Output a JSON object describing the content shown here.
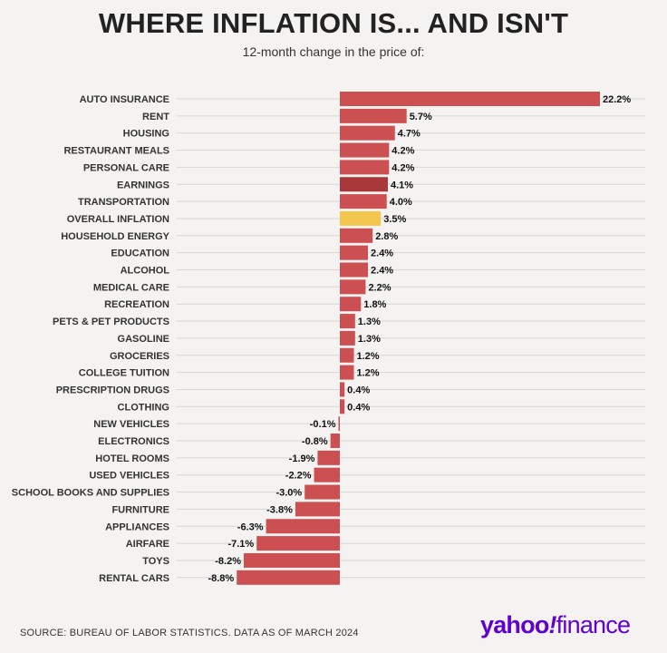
{
  "title": "WHERE INFLATION IS... AND ISN'T",
  "subtitle": "12-month change in the price of:",
  "source": "SOURCE: BUREAU OF LABOR STATISTICS. DATA AS OF MARCH 2024",
  "logo": {
    "part1": "yahoo",
    "part2": "!",
    "part3": "finance"
  },
  "colors": {
    "bar": "#cc5052",
    "highlight_dark": "#a8383a",
    "highlight_overall": "#f3c74f",
    "background": "#f4f3f2",
    "brand": "#5f01d1"
  },
  "chart_data": {
    "type": "bar",
    "orientation": "horizontal",
    "title": "WHERE INFLATION IS... AND ISN'T",
    "subtitle": "12-month change in the price of:",
    "unit": "%",
    "categories": [
      "AUTO INSURANCE",
      "RENT",
      "HOUSING",
      "RESTAURANT MEALS",
      "PERSONAL CARE",
      "EARNINGS",
      "TRANSPORTATION",
      "OVERALL INFLATION",
      "HOUSEHOLD ENERGY",
      "EDUCATION",
      "ALCOHOL",
      "MEDICAL CARE",
      "RECREATION",
      "PETS & PET PRODUCTS",
      "GASOLINE",
      "GROCERIES",
      "COLLEGE TUITION",
      "PRESCRIPTION DRUGS",
      "CLOTHING",
      "NEW VEHICLES",
      "ELECTRONICS",
      "HOTEL ROOMS",
      "USED VEHICLES",
      "SCHOOL BOOKS AND SUPPLIES",
      "FURNITURE",
      "APPLIANCES",
      "AIRFARE",
      "TOYS",
      "RENTAL CARS"
    ],
    "values": [
      22.2,
      5.7,
      4.7,
      4.2,
      4.2,
      4.1,
      4.0,
      3.5,
      2.8,
      2.4,
      2.4,
      2.2,
      1.8,
      1.3,
      1.3,
      1.2,
      1.2,
      0.4,
      0.4,
      -0.1,
      -0.8,
      -1.9,
      -2.2,
      -3.0,
      -3.8,
      -6.3,
      -7.1,
      -8.2,
      -8.8
    ],
    "labels": [
      "22.2%",
      "5.7%",
      "4.7%",
      "4.2%",
      "4.2%",
      "4.1%",
      "4.0%",
      "3.5%",
      "2.8%",
      "2.4%",
      "2.4%",
      "2.2%",
      "1.8%",
      "1.3%",
      "1.3%",
      "1.2%",
      "1.2%",
      "0.4%",
      "0.4%",
      "-0.1%",
      "-0.8%",
      "-1.9%",
      "-2.2%",
      "-3.0%",
      "-3.8%",
      "-6.3%",
      "-7.1%",
      "-8.2%",
      "-8.8%"
    ],
    "highlights": {
      "EARNINGS": "highlight_dark",
      "OVERALL INFLATION": "highlight_overall"
    },
    "xlim": [
      -8.8,
      22.2
    ],
    "grid": true
  }
}
